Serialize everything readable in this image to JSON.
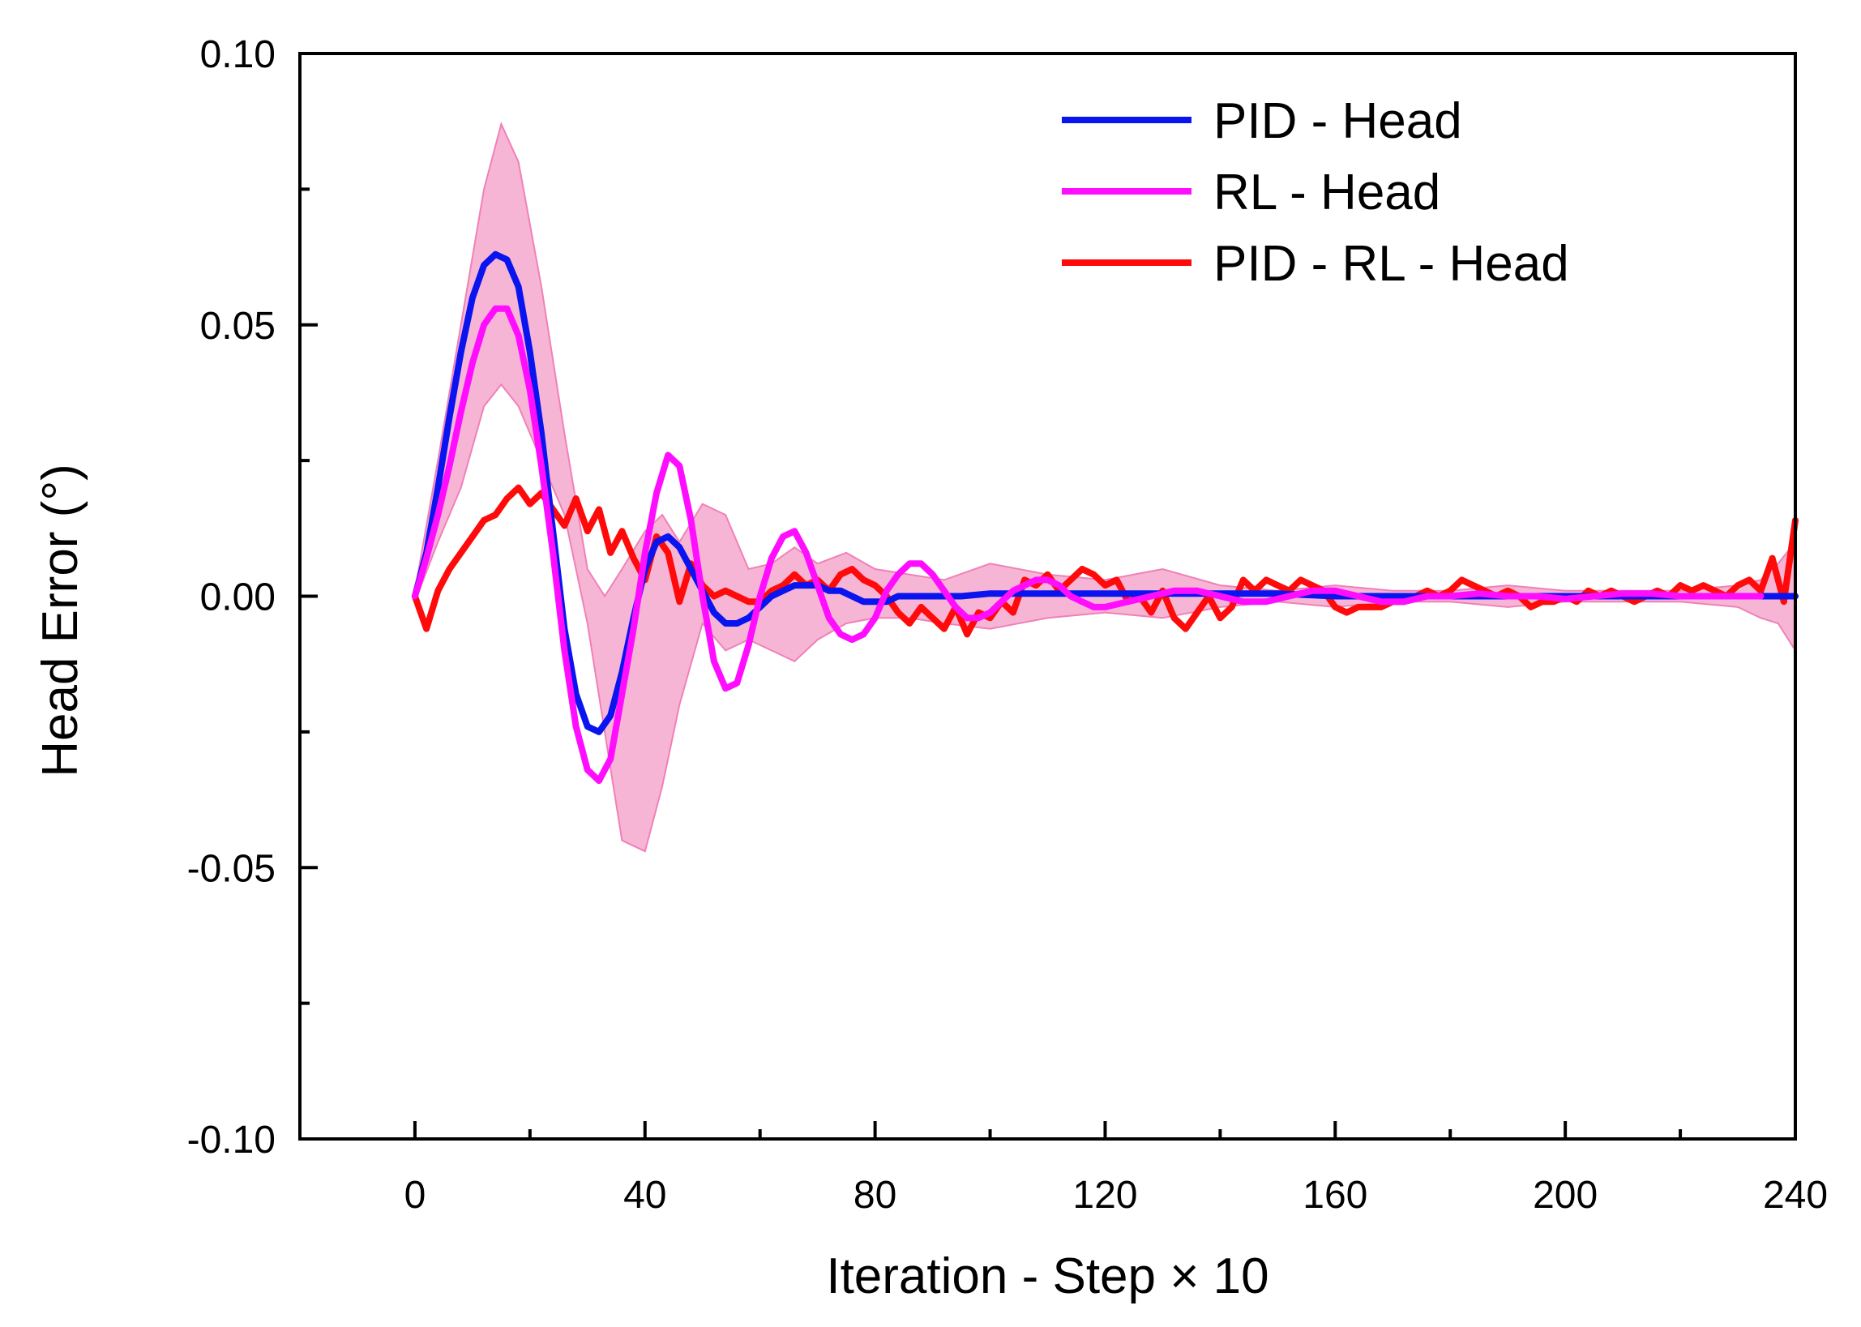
{
  "chart_data": {
    "type": "line",
    "title": "",
    "xlabel": "Iteration - Step × 10",
    "ylabel": "Head Error (°)",
    "xlim": [
      -20,
      240
    ],
    "ylim": [
      -0.1,
      0.1
    ],
    "x_ticks": [
      0,
      40,
      80,
      120,
      160,
      200,
      240
    ],
    "x_tick_labels": [
      "0",
      "40",
      "80",
      "120",
      "160",
      "200",
      "240"
    ],
    "x_minor_ticks": [
      20,
      60,
      100,
      140,
      180,
      220
    ],
    "y_ticks": [
      -0.1,
      -0.05,
      0.0,
      0.05,
      0.1
    ],
    "y_tick_labels": [
      "-0.10",
      "-0.05",
      "0.00",
      "0.05",
      "0.10"
    ],
    "y_minor_ticks": [
      -0.075,
      -0.025,
      0.025,
      0.075
    ],
    "legend_position": "top-right",
    "band": {
      "name": "RL - Head spread",
      "color": "#f6a8cf",
      "x": [
        0,
        4,
        8,
        12,
        15,
        18,
        22,
        26,
        30,
        33,
        36,
        40,
        43,
        46,
        50,
        54,
        58,
        62,
        66,
        70,
        75,
        80,
        86,
        92,
        100,
        110,
        120,
        130,
        140,
        150,
        160,
        170,
        180,
        190,
        200,
        210,
        220,
        230,
        234,
        237,
        240
      ],
      "upper": [
        0.001,
        0.025,
        0.05,
        0.075,
        0.087,
        0.08,
        0.057,
        0.03,
        0.005,
        0.0,
        0.005,
        0.012,
        0.015,
        0.01,
        0.017,
        0.015,
        0.005,
        0.006,
        0.009,
        0.006,
        0.008,
        0.005,
        0.004,
        0.003,
        0.006,
        0.004,
        0.003,
        0.005,
        0.002,
        0.001,
        0.002,
        0.001,
        0.001,
        0.002,
        0.001,
        0.001,
        0.001,
        0.002,
        0.003,
        0.006,
        0.01
      ],
      "lower": [
        -0.001,
        0.01,
        0.02,
        0.035,
        0.039,
        0.035,
        0.025,
        0.015,
        -0.005,
        -0.025,
        -0.045,
        -0.047,
        -0.035,
        -0.02,
        -0.005,
        -0.01,
        -0.008,
        -0.01,
        -0.012,
        -0.008,
        -0.005,
        -0.004,
        -0.004,
        -0.005,
        -0.006,
        -0.004,
        -0.003,
        -0.004,
        -0.002,
        -0.001,
        -0.002,
        -0.001,
        -0.001,
        -0.002,
        -0.001,
        -0.001,
        -0.001,
        -0.002,
        -0.004,
        -0.005,
        -0.01
      ]
    },
    "series": [
      {
        "name": "PID - Head",
        "color": "#0a14ee",
        "x": [
          0,
          2,
          4,
          6,
          8,
          10,
          12,
          14,
          16,
          18,
          20,
          22,
          24,
          26,
          28,
          30,
          32,
          34,
          36,
          38,
          40,
          42,
          44,
          46,
          48,
          50,
          52,
          54,
          56,
          58,
          60,
          62,
          64,
          66,
          68,
          70,
          72,
          74,
          76,
          78,
          80,
          82,
          84,
          86,
          88,
          90,
          95,
          100,
          110,
          120,
          130,
          140,
          150,
          160,
          170,
          180,
          190,
          200,
          210,
          220,
          230,
          240
        ],
        "values": [
          0.0,
          0.008,
          0.02,
          0.033,
          0.045,
          0.055,
          0.061,
          0.063,
          0.062,
          0.057,
          0.045,
          0.03,
          0.012,
          -0.006,
          -0.018,
          -0.024,
          -0.025,
          -0.022,
          -0.014,
          -0.004,
          0.005,
          0.01,
          0.011,
          0.009,
          0.005,
          0.001,
          -0.003,
          -0.005,
          -0.005,
          -0.004,
          -0.002,
          0.0,
          0.001,
          0.002,
          0.002,
          0.002,
          0.001,
          0.001,
          0.0,
          -0.001,
          -0.001,
          -0.001,
          0.0,
          0.0,
          0.0,
          0.0,
          0.0,
          0.0005,
          0.0005,
          0.0005,
          0.0005,
          0.0005,
          0.0005,
          0.0,
          0.0,
          0.0,
          0.0,
          0.0,
          0.0,
          0.0,
          0.0,
          0.0
        ]
      },
      {
        "name": "RL - Head",
        "color": "#ff0dff",
        "x": [
          0,
          2,
          4,
          6,
          8,
          10,
          12,
          14,
          16,
          18,
          20,
          22,
          24,
          26,
          28,
          30,
          32,
          34,
          36,
          38,
          40,
          42,
          44,
          46,
          48,
          50,
          52,
          54,
          56,
          58,
          60,
          62,
          64,
          66,
          68,
          70,
          72,
          74,
          76,
          78,
          80,
          82,
          84,
          86,
          88,
          90,
          92,
          94,
          96,
          98,
          100,
          102,
          104,
          106,
          108,
          110,
          112,
          114,
          116,
          118,
          120,
          124,
          128,
          132,
          136,
          140,
          144,
          148,
          152,
          156,
          160,
          164,
          168,
          172,
          176,
          180,
          185,
          190,
          195,
          200,
          205,
          210,
          215,
          220,
          225,
          230,
          234
        ],
        "values": [
          0.0,
          0.007,
          0.015,
          0.024,
          0.034,
          0.043,
          0.05,
          0.053,
          0.053,
          0.048,
          0.038,
          0.024,
          0.008,
          -0.01,
          -0.024,
          -0.032,
          -0.034,
          -0.03,
          -0.018,
          -0.006,
          0.008,
          0.019,
          0.026,
          0.024,
          0.014,
          0.0,
          -0.012,
          -0.017,
          -0.016,
          -0.009,
          0.0,
          0.007,
          0.011,
          0.012,
          0.008,
          0.002,
          -0.004,
          -0.007,
          -0.008,
          -0.007,
          -0.004,
          0.001,
          0.004,
          0.006,
          0.006,
          0.004,
          0.001,
          -0.002,
          -0.004,
          -0.004,
          -0.003,
          -0.001,
          0.001,
          0.002,
          0.003,
          0.003,
          0.002,
          0.0,
          -0.001,
          -0.002,
          -0.002,
          -0.001,
          0.0,
          0.001,
          0.001,
          0.0,
          -0.001,
          -0.001,
          0.0,
          0.001,
          0.001,
          0.0,
          -0.001,
          -0.001,
          0.0,
          0.0,
          0.0005,
          0.0,
          0.0,
          -0.0005,
          0.0,
          0.0005,
          0.0005,
          0.0,
          0.0,
          0.0,
          0.0
        ]
      },
      {
        "name": "PID - RL - Head",
        "color": "#ff0a0a",
        "x": [
          0,
          2,
          4,
          6,
          8,
          10,
          12,
          14,
          16,
          18,
          20,
          22,
          24,
          26,
          28,
          30,
          32,
          34,
          36,
          38,
          40,
          42,
          44,
          46,
          48,
          50,
          52,
          54,
          56,
          58,
          60,
          62,
          64,
          66,
          68,
          70,
          72,
          74,
          76,
          78,
          80,
          82,
          84,
          86,
          88,
          90,
          92,
          94,
          96,
          98,
          100,
          102,
          104,
          106,
          108,
          110,
          112,
          114,
          116,
          118,
          120,
          122,
          124,
          126,
          128,
          130,
          132,
          134,
          136,
          138,
          140,
          142,
          144,
          146,
          148,
          150,
          152,
          154,
          156,
          158,
          160,
          162,
          164,
          166,
          168,
          170,
          172,
          174,
          176,
          178,
          180,
          182,
          184,
          186,
          188,
          190,
          192,
          194,
          196,
          198,
          200,
          202,
          204,
          206,
          208,
          210,
          212,
          214,
          216,
          218,
          220,
          222,
          224,
          226,
          228,
          230,
          232,
          234,
          236,
          238,
          240
        ],
        "values": [
          0.0,
          -0.006,
          0.001,
          0.005,
          0.008,
          0.011,
          0.014,
          0.015,
          0.018,
          0.02,
          0.017,
          0.019,
          0.016,
          0.013,
          0.018,
          0.012,
          0.016,
          0.008,
          0.012,
          0.007,
          0.003,
          0.011,
          0.008,
          -0.001,
          0.006,
          0.002,
          0.0,
          0.001,
          0.0,
          -0.001,
          -0.001,
          0.001,
          0.002,
          0.004,
          0.002,
          0.003,
          0.001,
          0.004,
          0.005,
          0.003,
          0.002,
          0.0,
          -0.003,
          -0.005,
          -0.002,
          -0.004,
          -0.006,
          -0.002,
          -0.007,
          -0.003,
          -0.004,
          -0.001,
          -0.003,
          0.003,
          0.002,
          0.004,
          0.001,
          0.003,
          0.005,
          0.004,
          0.002,
          0.003,
          -0.001,
          0.0,
          -0.003,
          0.001,
          -0.004,
          -0.006,
          -0.003,
          0.0,
          -0.004,
          -0.002,
          0.003,
          0.001,
          0.003,
          0.002,
          0.001,
          0.003,
          0.002,
          0.001,
          -0.002,
          -0.003,
          -0.002,
          -0.002,
          -0.002,
          -0.001,
          -0.001,
          0.0,
          0.001,
          0.0,
          0.001,
          0.003,
          0.002,
          0.001,
          0.0,
          0.001,
          0.0,
          -0.002,
          -0.001,
          -0.001,
          0.0,
          -0.001,
          0.001,
          0.0,
          0.001,
          0.0,
          -0.001,
          0.0,
          0.001,
          0.0,
          0.002,
          0.001,
          0.002,
          0.001,
          0.0,
          0.002,
          0.003,
          0.001,
          0.007,
          -0.001,
          0.014
        ]
      }
    ]
  }
}
